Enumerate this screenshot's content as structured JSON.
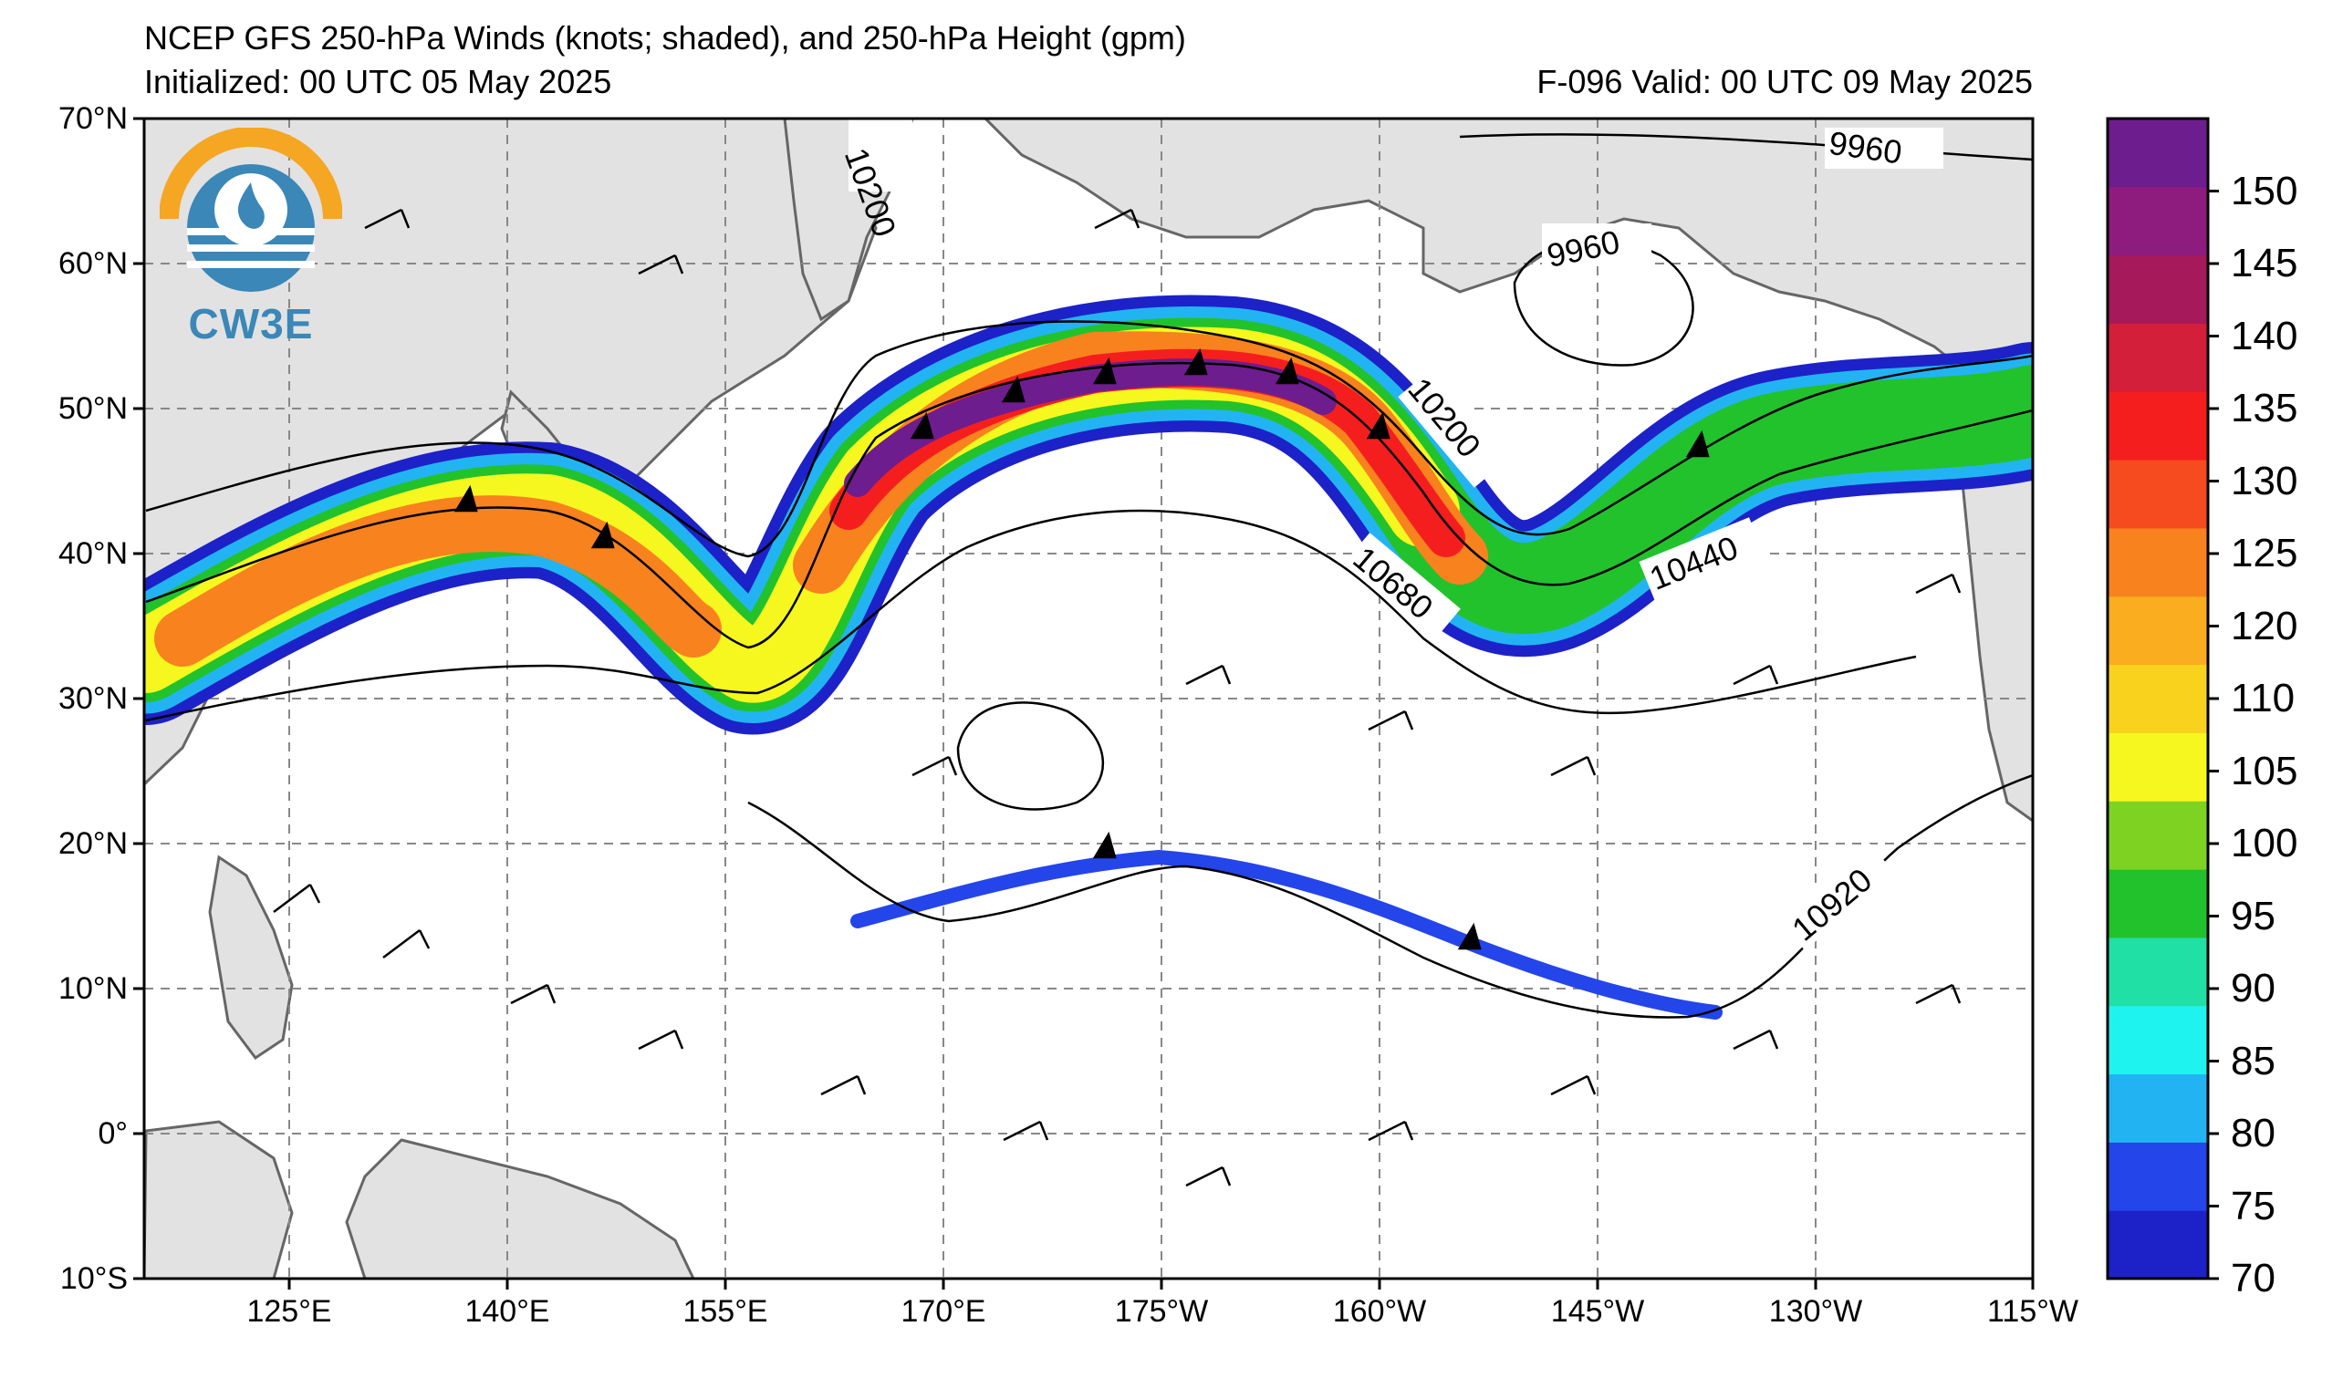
{
  "header": {
    "title": "NCEP GFS 250-hPa Winds (knots; shaded), and 250-hPa Height (gpm)",
    "initialized": "Initialized: 00 UTC 05 May 2025",
    "valid": "F-096  Valid: 00 UTC 09 May 2025"
  },
  "logo": {
    "text": "CW3E",
    "icon": "cw3e-logo-icon",
    "color": "#3a87b8",
    "accent": "#f5a623"
  },
  "map": {
    "lat_labels": [
      "70°N",
      "60°N",
      "50°N",
      "40°N",
      "30°N",
      "20°N",
      "10°N",
      "0°",
      "10°S"
    ],
    "lon_labels": [
      "125°E",
      "140°E",
      "155°E",
      "170°E",
      "175°W",
      "160°W",
      "145°W",
      "130°W",
      "115°W"
    ],
    "contour_labels": [
      "10200",
      "9960",
      "9960",
      "10200",
      "10440",
      "10680",
      "10920"
    ],
    "land_color": "#e2e2e2",
    "coast_color": "#666666"
  },
  "colorbar": {
    "ticks": [
      "70",
      "75",
      "80",
      "85",
      "90",
      "95",
      "100",
      "105",
      "110",
      "120",
      "125",
      "130",
      "135",
      "140",
      "145",
      "150"
    ],
    "colors": [
      "#1d21c8",
      "#2445ea",
      "#22b4f2",
      "#1ff3f0",
      "#20e0a6",
      "#22c22c",
      "#7ed322",
      "#f6f71f",
      "#f9d21e",
      "#f9ad1f",
      "#f8821e",
      "#f64a1f",
      "#f51e1e",
      "#d41f3a",
      "#a6195a",
      "#8e1c7e",
      "#6e1d8e"
    ]
  }
}
